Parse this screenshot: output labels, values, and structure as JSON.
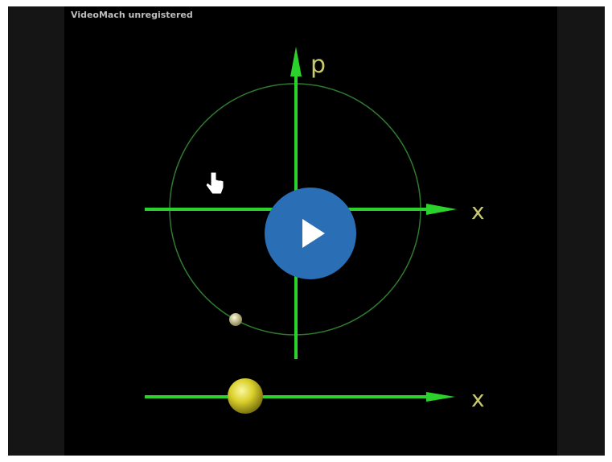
{
  "watermark": "VideoMach unregistered",
  "diagram": {
    "p_label": "p",
    "x_label": "x",
    "lower_x_label": "x"
  }
}
